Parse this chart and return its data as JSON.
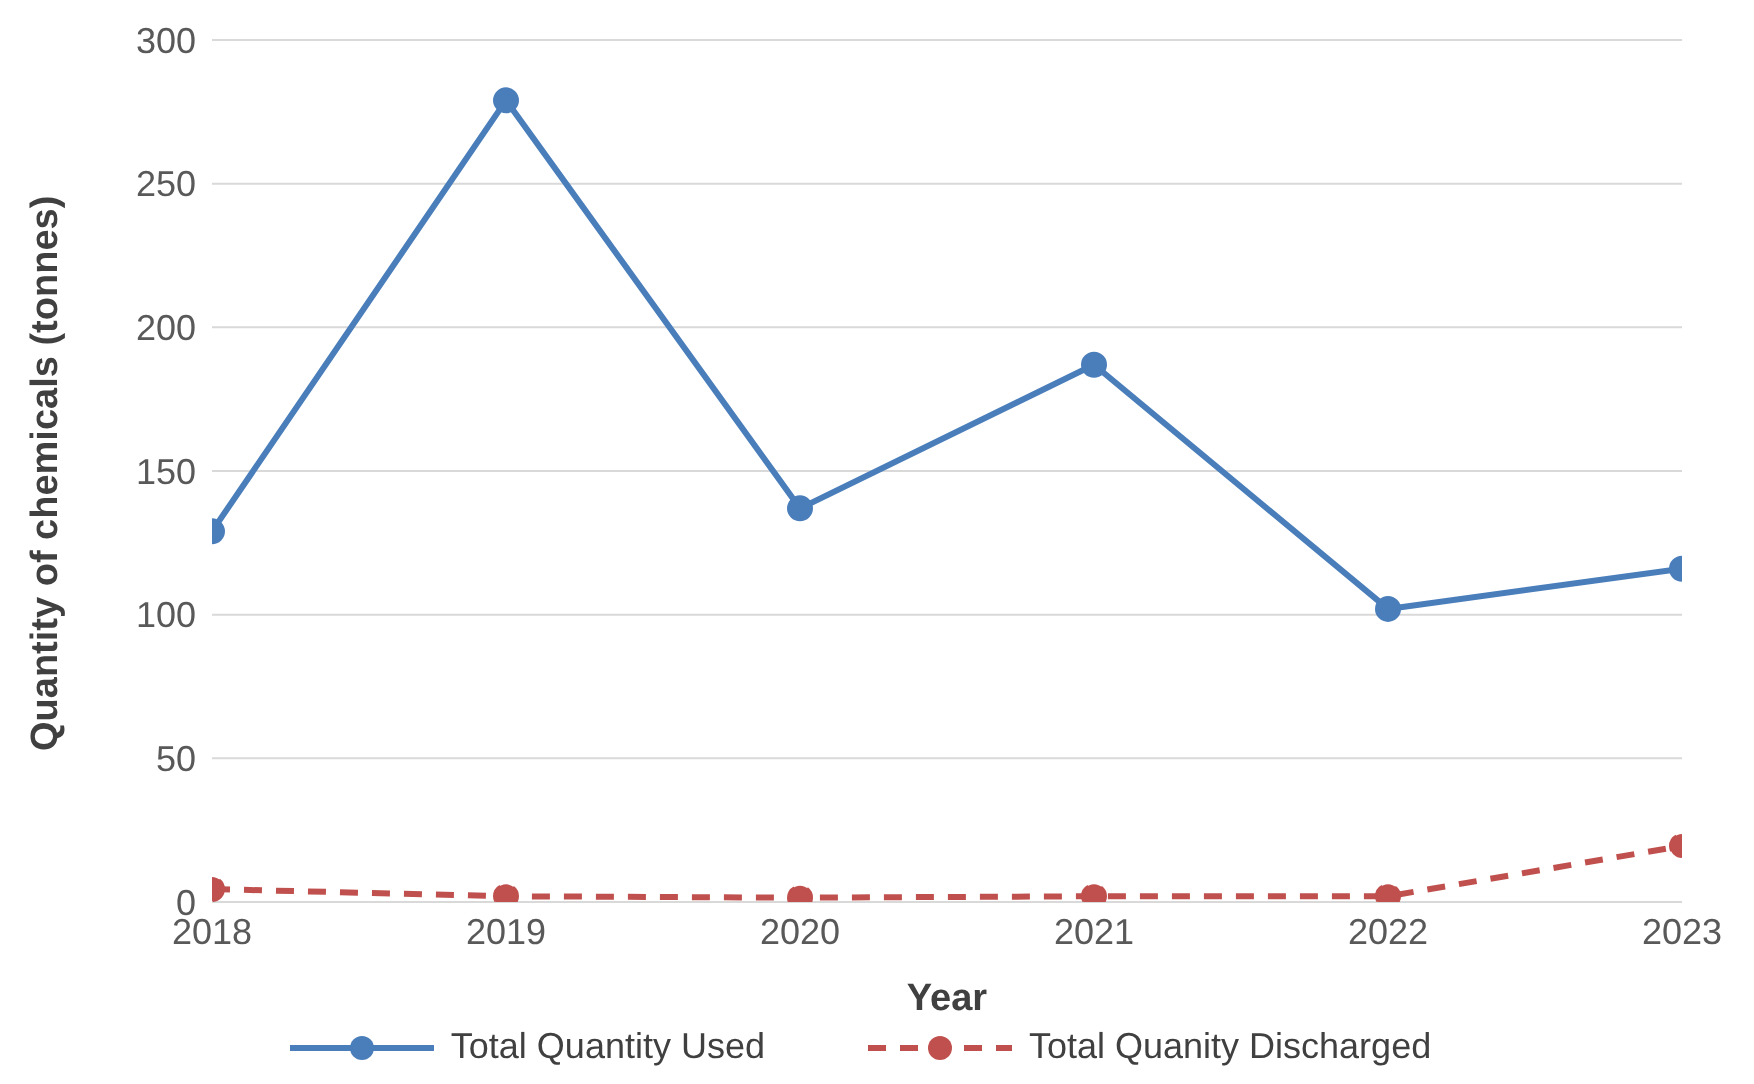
{
  "chart_data": {
    "type": "line",
    "xlabel": "Year",
    "ylabel": "Quantity of chemicals (tonnes)",
    "x": [
      2018,
      2019,
      2020,
      2021,
      2022,
      2023
    ],
    "xlim": [
      2018,
      2023
    ],
    "xticks": [
      2018,
      2019,
      2020,
      2021,
      2022,
      2023
    ],
    "ylim": [
      0,
      300
    ],
    "yticks": [
      0,
      50,
      100,
      150,
      200,
      250,
      300
    ],
    "grid": "y",
    "legend": "bottom",
    "marker": "circle",
    "series": [
      {
        "name": "Total Quantity Used",
        "color": "#4a7ebb",
        "line_style": "solid",
        "values": [
          129,
          279,
          137,
          187,
          102,
          116
        ]
      },
      {
        "name": "Total Quanity Discharged",
        "color": "#c0504d",
        "line_style": "dashed",
        "values": [
          4.5,
          2,
          1.5,
          2,
          2,
          19.5
        ]
      }
    ]
  }
}
